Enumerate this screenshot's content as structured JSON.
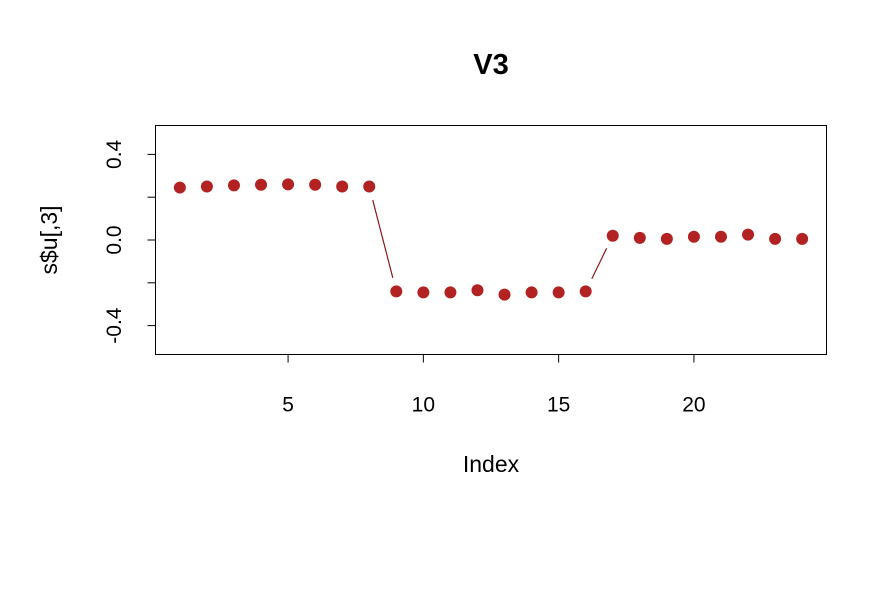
{
  "chart_data": {
    "type": "scatter",
    "title": "V3",
    "xlabel": "Index",
    "ylabel": "s$u[,3]",
    "xlim": [
      0.1,
      24.9
    ],
    "ylim": [
      -0.535,
      0.535
    ],
    "x_ticks": [
      5,
      10,
      15,
      20
    ],
    "y_ticks": [
      -0.4,
      0.0,
      0.4
    ],
    "x_tick_labels": [
      "5",
      "10",
      "15",
      "20"
    ],
    "y_tick_labels": [
      "-0.4",
      "0.0",
      "0.4"
    ],
    "grid": false,
    "legend": "none",
    "point_color": "#b22222",
    "segment_color": "#8b1a1a",
    "x": [
      1,
      2,
      3,
      4,
      5,
      6,
      7,
      8,
      9,
      10,
      11,
      12,
      13,
      14,
      15,
      16,
      17,
      18,
      19,
      20,
      21,
      22,
      23,
      24
    ],
    "y": [
      0.245,
      0.25,
      0.255,
      0.258,
      0.26,
      0.258,
      0.25,
      0.25,
      -0.24,
      -0.245,
      -0.245,
      -0.235,
      -0.255,
      -0.245,
      -0.245,
      -0.24,
      0.02,
      0.01,
      0.005,
      0.015,
      0.015,
      0.025,
      0.005,
      0.005
    ],
    "segments": [
      [
        8,
        9
      ],
      [
        16,
        17
      ]
    ]
  }
}
